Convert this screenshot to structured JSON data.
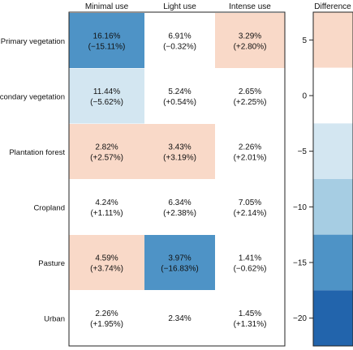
{
  "chart_data": [
    {
      "type": "heatmap",
      "columns": [
        "Minimal use",
        "Light use",
        "Intense use"
      ],
      "rows": [
        "Primary vegetation",
        "Secondary vegetation",
        "Plantation forest",
        "Cropland",
        "Pasture",
        "Urban"
      ],
      "cells": [
        [
          {
            "value": "16.16%",
            "difference": -15.11,
            "difference_label": "(−15.11%)"
          },
          {
            "value": "6.91%",
            "difference": -0.32,
            "difference_label": "(−0.32%)"
          },
          {
            "value": "3.29%",
            "difference": 2.8,
            "difference_label": "(+2.80%)"
          }
        ],
        [
          {
            "value": "11.44%",
            "difference": -5.62,
            "difference_label": "(−5.62%)"
          },
          {
            "value": "5.24%",
            "difference": 0.54,
            "difference_label": "(+0.54%)"
          },
          {
            "value": "2.65%",
            "difference": 2.25,
            "difference_label": "(+2.25%)"
          }
        ],
        [
          {
            "value": "2.82%",
            "difference": 2.57,
            "difference_label": "(+2.57%)"
          },
          {
            "value": "3.43%",
            "difference": 3.19,
            "difference_label": "(+3.19%)"
          },
          {
            "value": "2.26%",
            "difference": 2.01,
            "difference_label": "(+2.01%)"
          }
        ],
        [
          {
            "value": "4.24%",
            "difference": 1.11,
            "difference_label": "(+1.11%)"
          },
          {
            "value": "6.34%",
            "difference": 2.38,
            "difference_label": "(+2.38%)"
          },
          {
            "value": "7.05%",
            "difference": 2.14,
            "difference_label": "(+2.14%)"
          }
        ],
        [
          {
            "value": "4.59%",
            "difference": 3.74,
            "difference_label": "(+3.74%)"
          },
          {
            "value": "3.97%",
            "difference": -16.83,
            "difference_label": "(−16.83%)"
          },
          {
            "value": "1.41%",
            "difference": -0.62,
            "difference_label": "(−0.62%)"
          }
        ],
        [
          {
            "value": "2.26%",
            "difference": 1.95,
            "difference_label": "(+1.95%)"
          },
          {
            "value": "2.34%",
            "difference": null,
            "difference_label": ""
          },
          {
            "value": "1.45%",
            "difference": 1.31,
            "difference_label": "(+1.31%)"
          }
        ]
      ]
    },
    {
      "type": "colorbar",
      "title": "Difference",
      "range": [
        -22.5,
        7.5
      ],
      "ticks": [
        5,
        0,
        -5,
        -10,
        -15,
        -20
      ],
      "tick_labels": [
        "5",
        "0",
        "−5",
        "−10",
        "−15",
        "−20"
      ],
      "bins": [
        {
          "from": 2.5,
          "to": 7.5,
          "color": "#f9d9c8"
        },
        {
          "from": -2.5,
          "to": 2.5,
          "color": "#ffffff"
        },
        {
          "from": -7.5,
          "to": -2.5,
          "color": "#d3e6f1"
        },
        {
          "from": -12.5,
          "to": -7.5,
          "color": "#a6cde3"
        },
        {
          "from": -17.5,
          "to": -12.5,
          "color": "#4e93c6"
        },
        {
          "from": -22.5,
          "to": -17.5,
          "color": "#2264ac"
        }
      ]
    }
  ]
}
